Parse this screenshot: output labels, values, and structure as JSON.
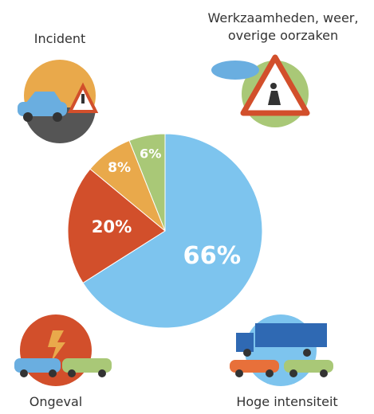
{
  "chart_data": {
    "type": "pie",
    "categories": [
      "Hoge intensiteit",
      "Ongeval",
      "Incident",
      "Werkzaamheden, weer, overige oorzaken"
    ],
    "values": [
      66,
      20,
      8,
      6
    ],
    "value_labels": [
      "66%",
      "20%",
      "8%",
      "6%"
    ],
    "colors": [
      "#7dc4ee",
      "#d24f2b",
      "#e9a94b",
      "#a9c877"
    ]
  }
}
